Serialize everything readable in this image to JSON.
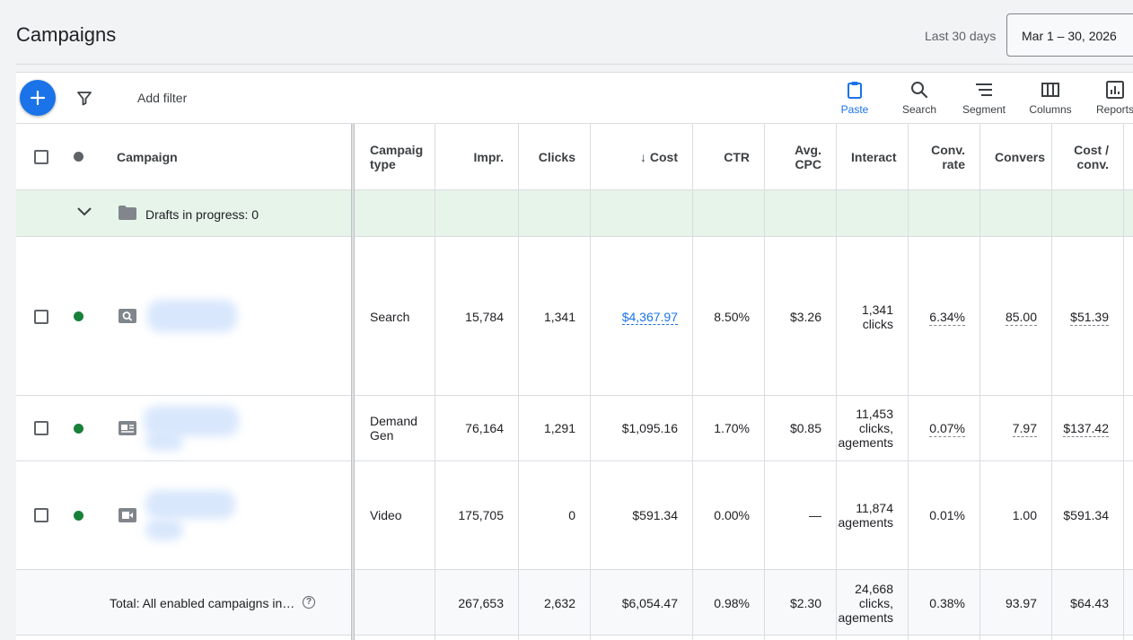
{
  "header": {
    "title": "Campaigns",
    "date_label": "Last 30 days",
    "date_range": "Mar 1 – 30, 2026"
  },
  "toolbar": {
    "add_filter": "Add filter",
    "tools": [
      {
        "label": "Paste",
        "icon": "clipboard-icon",
        "active": true
      },
      {
        "label": "Search",
        "icon": "search-icon"
      },
      {
        "label": "Segment",
        "icon": "segment-icon"
      },
      {
        "label": "Columns",
        "icon": "columns-icon"
      },
      {
        "label": "Reports",
        "icon": "reports-icon"
      }
    ]
  },
  "table": {
    "headers": {
      "campaign": "Campaign",
      "campaign_type_1": "Campaig",
      "campaign_type_2": "type",
      "impr": "Impr.",
      "clicks": "Clicks",
      "cost": "↓ Cost",
      "ctr": "CTR",
      "avg_cpc_1": "Avg.",
      "avg_cpc_2": "CPC",
      "interactions": "Interact",
      "conv_rate_1": "Conv.",
      "conv_rate_2": "rate",
      "conversions": "Convers",
      "cost_conv_1": "Cost /",
      "cost_conv_2": "conv."
    },
    "drafts": {
      "label": "Drafts in progress: 0"
    },
    "rows": [
      {
        "type": "Search",
        "impr": "15,784",
        "clicks": "1,341",
        "cost": "$4,367.97",
        "ctr": "8.50%",
        "avg_cpc": "$3.26",
        "interactions_1": "1,341",
        "interactions_2": "clicks",
        "conv_rate": "6.34%",
        "conversions": "85.00",
        "cost_conv": "$51.39"
      },
      {
        "type_1": "Demand",
        "type_2": "Gen",
        "impr": "76,164",
        "clicks": "1,291",
        "cost": "$1,095.16",
        "ctr": "1.70%",
        "avg_cpc": "$0.85",
        "interactions_1": "11,453",
        "interactions_2": "clicks,",
        "interactions_3": "agements",
        "conv_rate": "0.07%",
        "conversions": "7.97",
        "cost_conv": "$137.42"
      },
      {
        "type": "Video",
        "impr": "175,705",
        "clicks": "0",
        "cost": "$591.34",
        "ctr": "0.00%",
        "avg_cpc": "—",
        "interactions_1": "11,874",
        "interactions_2": "agements",
        "conv_rate": "0.01%",
        "conversions": "1.00",
        "cost_conv": "$591.34"
      }
    ],
    "total": {
      "label": "Total: All enabled campaigns in…",
      "impr": "267,653",
      "clicks": "2,632",
      "cost": "$6,054.47",
      "ctr": "0.98%",
      "avg_cpc": "$2.30",
      "interactions_1": "24,668",
      "interactions_2": "clicks,",
      "interactions_3": "agements",
      "conv_rate": "0.38%",
      "conversions": "93.97",
      "cost_conv": "$64.43"
    }
  },
  "colors": {
    "accent": "#1a73e8",
    "enabled": "#188038",
    "drafts_bg": "#e6f4ea"
  }
}
